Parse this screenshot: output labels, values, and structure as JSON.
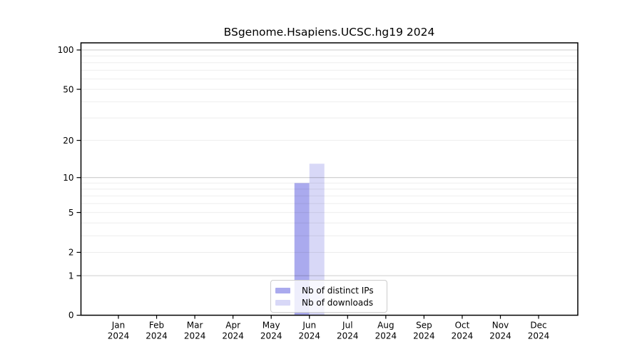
{
  "header": {
    "title": "BSgenome.Hsapiens.UCSC.hg19 2024"
  },
  "legend": {
    "items": [
      {
        "label": "Nb of distinct IPs",
        "color": "#aaaaee"
      },
      {
        "label": "Nb of downloads",
        "color": "#d8d8f7"
      }
    ]
  },
  "colors": {
    "axis_frame": "#000000",
    "major_gridline": "#cccccc",
    "minor_gridline": "#ededed",
    "background": "#ffffff"
  },
  "chart_data": {
    "type": "bar",
    "title": "BSgenome.Hsapiens.UCSC.hg19 2024",
    "categories": [
      "Jan",
      "Feb",
      "Mar",
      "Apr",
      "May",
      "Jun",
      "Jul",
      "Aug",
      "Sep",
      "Oct",
      "Nov",
      "Dec"
    ],
    "x_tick_year": "2024",
    "series": [
      {
        "name": "Nb of distinct IPs",
        "color": "#aaaaee",
        "values": [
          0,
          0,
          0,
          0,
          0,
          9,
          0,
          0,
          0,
          0,
          0,
          0
        ]
      },
      {
        "name": "Nb of downloads",
        "color": "#d8d8f7",
        "values": [
          0,
          0,
          0,
          0,
          0,
          13,
          0,
          0,
          0,
          0,
          0,
          0
        ]
      }
    ],
    "xlabel": "",
    "ylabel": "",
    "yscale": "log1p",
    "ylim": [
      0,
      113
    ],
    "yticks": [
      0,
      1,
      2,
      5,
      10,
      20,
      50,
      100
    ],
    "major_gridlines": [
      1,
      10,
      100
    ],
    "minor_gridlines": [
      2,
      3,
      4,
      5,
      6,
      7,
      8,
      9,
      20,
      30,
      40,
      50,
      60,
      70,
      80,
      90
    ],
    "grid": true,
    "legend_position": "lower center"
  }
}
